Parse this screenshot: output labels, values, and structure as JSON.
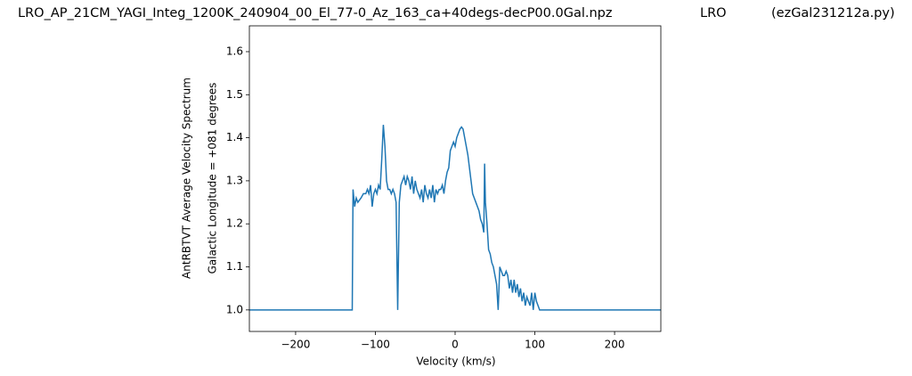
{
  "chart_data": {
    "type": "line",
    "title": "LRO_AP_21CM_YAGI_Integ_1200K_240904_00_El_77-0_Az_163_ca+40degs-decP00.0Gal.npz",
    "station": "LRO",
    "script": "(ezGal231212a.py)",
    "xlabel": "Velocity (km/s)",
    "ylabel": [
      "AntRBTVT Average Velocity Spectrum",
      "Galactic Longitude = +081 degrees"
    ],
    "xlim": [
      -258,
      258
    ],
    "ylim": [
      0.95,
      1.66
    ],
    "xticks": [
      {
        "value": -200,
        "label": "−200"
      },
      {
        "value": -100,
        "label": "−100"
      },
      0,
      100,
      200
    ],
    "yticks": [
      {
        "value": 1,
        "label": "1.0"
      },
      1.1,
      1.2,
      1.3,
      1.4,
      1.5,
      1.6
    ],
    "grid": false,
    "series": [
      {
        "color": "#1f77b4",
        "x": [
          -258,
          -129,
          -128,
          -126,
          -124,
          -122,
          -118,
          -115,
          -112,
          -110,
          -108,
          -106,
          -104,
          -102,
          -100,
          -98,
          -96,
          -94,
          -92,
          -90,
          -88,
          -86,
          -84,
          -82,
          -80,
          -78,
          -76,
          -74,
          -72,
          -70,
          -68,
          -66,
          -64,
          -62,
          -60,
          -58,
          -56,
          -54,
          -52,
          -50,
          -48,
          -46,
          -44,
          -42,
          -40,
          -38,
          -36,
          -34,
          -32,
          -30,
          -28,
          -26,
          -24,
          -22,
          -20,
          -18,
          -16,
          -14,
          -12,
          -10,
          -8,
          -6,
          -4,
          -2,
          0,
          2,
          4,
          6,
          8,
          10,
          12,
          14,
          16,
          18,
          20,
          22,
          24,
          26,
          28,
          30,
          32,
          34,
          36,
          37,
          38,
          40,
          42,
          44,
          46,
          48,
          50,
          52,
          54,
          56,
          58,
          60,
          62,
          64,
          66,
          68,
          70,
          72,
          74,
          76,
          78,
          80,
          82,
          84,
          86,
          88,
          90,
          92,
          94,
          96,
          98,
          100,
          102,
          104,
          106,
          108,
          258
        ],
        "values": [
          1.0,
          1.0,
          1.28,
          1.24,
          1.26,
          1.25,
          1.26,
          1.27,
          1.27,
          1.28,
          1.27,
          1.29,
          1.24,
          1.27,
          1.28,
          1.27,
          1.29,
          1.28,
          1.35,
          1.43,
          1.38,
          1.3,
          1.28,
          1.28,
          1.27,
          1.28,
          1.27,
          1.25,
          1.0,
          1.25,
          1.29,
          1.3,
          1.31,
          1.29,
          1.31,
          1.3,
          1.28,
          1.31,
          1.27,
          1.3,
          1.28,
          1.27,
          1.26,
          1.28,
          1.25,
          1.29,
          1.27,
          1.26,
          1.28,
          1.26,
          1.29,
          1.25,
          1.28,
          1.27,
          1.28,
          1.28,
          1.29,
          1.27,
          1.3,
          1.32,
          1.33,
          1.37,
          1.38,
          1.39,
          1.38,
          1.4,
          1.41,
          1.42,
          1.425,
          1.42,
          1.4,
          1.38,
          1.36,
          1.33,
          1.3,
          1.27,
          1.26,
          1.25,
          1.24,
          1.23,
          1.21,
          1.2,
          1.18,
          1.34,
          1.25,
          1.2,
          1.14,
          1.13,
          1.11,
          1.1,
          1.08,
          1.06,
          1.0,
          1.1,
          1.09,
          1.08,
          1.08,
          1.09,
          1.08,
          1.05,
          1.07,
          1.04,
          1.07,
          1.04,
          1.06,
          1.03,
          1.05,
          1.02,
          1.04,
          1.01,
          1.03,
          1.02,
          1.01,
          1.04,
          1.0,
          1.04,
          1.02,
          1.01,
          1.0,
          1.0,
          1.0
        ]
      }
    ]
  }
}
